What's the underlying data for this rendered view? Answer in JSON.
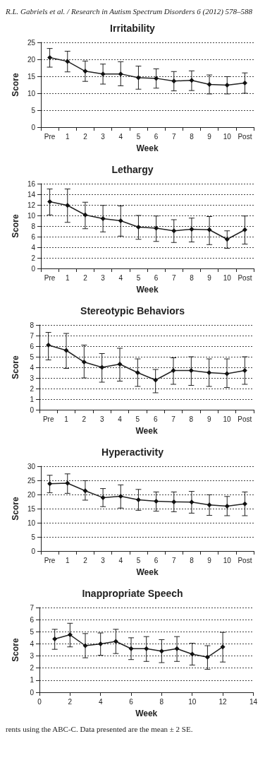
{
  "chart_data": [
    {
      "type": "line",
      "title": "Irritability",
      "xlabel": "Week",
      "ylabel": "Score",
      "annotations": [
        "R.L. Gabriels et al. / Research in Autism Spectrum Disorders 6 (2012) 578–588"
      ],
      "categories": [
        "Pre",
        "1",
        "2",
        "3",
        "4",
        "5",
        "6",
        "7",
        "8",
        "9",
        "10",
        "Post"
      ],
      "ylim": [
        0,
        25
      ],
      "yticks": [
        0,
        5,
        10,
        15,
        20,
        25
      ],
      "grid": "y",
      "marker": "diamond",
      "line_style": "solid",
      "series": [
        {
          "color": "#222222",
          "values": [
            20.5,
            19.4,
            16.5,
            15.7,
            15.7,
            14.6,
            14.4,
            13.6,
            13.8,
            12.6,
            12.4,
            13.0
          ],
          "errors": [
            [
              17.7,
              23.2
            ],
            [
              16.3,
              22.4
            ],
            [
              13.5,
              19.5
            ],
            [
              12.7,
              18.6
            ],
            [
              12.2,
              19.3
            ],
            [
              11.2,
              18.0
            ],
            [
              11.5,
              17.2
            ],
            [
              10.7,
              16.4
            ],
            [
              10.8,
              16.6
            ],
            [
              9.8,
              15.4
            ],
            [
              9.8,
              14.9
            ],
            [
              10.0,
              16.0
            ]
          ]
        }
      ]
    },
    {
      "type": "line",
      "title": "Lethargy",
      "xlabel": "Week",
      "ylabel": "Score",
      "categories": [
        "Pre",
        "1",
        "2",
        "3",
        "4",
        "5",
        "6",
        "7",
        "8",
        "9",
        "10",
        "Post"
      ],
      "ylim": [
        0,
        16
      ],
      "yticks": [
        0,
        2,
        4,
        6,
        8,
        10,
        12,
        14,
        16
      ],
      "grid": "y",
      "marker": "diamond",
      "line_style": "solid",
      "series": [
        {
          "color": "#222222",
          "values": [
            12.6,
            11.9,
            10.1,
            9.4,
            9.0,
            7.8,
            7.6,
            7.1,
            7.4,
            7.3,
            5.5,
            7.3
          ],
          "errors": [
            [
              10.1,
              15.0
            ],
            [
              8.7,
              15.0
            ],
            [
              7.5,
              12.5
            ],
            [
              6.9,
              11.9
            ],
            [
              6.1,
              11.8
            ],
            [
              5.5,
              10.0
            ],
            [
              5.1,
              9.9
            ],
            [
              4.9,
              9.2
            ],
            [
              5.0,
              9.5
            ],
            [
              4.5,
              9.8
            ],
            [
              3.8,
              7.1
            ],
            [
              4.6,
              9.9
            ]
          ]
        }
      ]
    },
    {
      "type": "line",
      "title": "Stereotypic Behaviors",
      "xlabel": "Week",
      "ylabel": "Score",
      "categories": [
        "Pre",
        "1",
        "2",
        "3",
        "4",
        "5",
        "6",
        "7",
        "8",
        "9",
        "10",
        "Post"
      ],
      "ylim": [
        0,
        8
      ],
      "yticks": [
        0,
        1,
        2,
        3,
        4,
        5,
        6,
        7,
        8
      ],
      "grid": "y",
      "marker": "diamond",
      "line_style": "solid",
      "series": [
        {
          "color": "#222222",
          "values": [
            6.1,
            5.6,
            4.5,
            4.0,
            4.3,
            3.5,
            2.8,
            3.7,
            3.7,
            3.5,
            3.4,
            3.7
          ],
          "errors": [
            [
              4.7,
              7.3
            ],
            [
              3.9,
              7.2
            ],
            [
              3.0,
              6.1
            ],
            [
              2.6,
              5.3
            ],
            [
              2.7,
              5.8
            ],
            [
              2.2,
              4.8
            ],
            [
              1.6,
              3.8
            ],
            [
              2.4,
              4.9
            ],
            [
              2.3,
              5.0
            ],
            [
              2.2,
              4.8
            ],
            [
              2.1,
              4.8
            ],
            [
              2.4,
              5.0
            ]
          ]
        }
      ]
    },
    {
      "type": "line",
      "title": "Hyperactivity",
      "xlabel": "Week",
      "ylabel": "Score",
      "categories": [
        "Pre",
        "1",
        "2",
        "3",
        "4",
        "5",
        "6",
        "7",
        "8",
        "9",
        "10",
        "Post"
      ],
      "ylim": [
        0,
        30
      ],
      "yticks": [
        0,
        5,
        10,
        15,
        20,
        25,
        30
      ],
      "grid": "y",
      "marker": "diamond",
      "line_style": "solid",
      "series": [
        {
          "color": "#222222",
          "values": [
            23.8,
            24.0,
            21.3,
            18.9,
            19.4,
            18.1,
            17.6,
            17.4,
            17.3,
            16.3,
            15.9,
            16.7
          ],
          "errors": [
            [
              20.6,
              26.8
            ],
            [
              20.4,
              27.3
            ],
            [
              18.0,
              24.9
            ],
            [
              15.7,
              22.1
            ],
            [
              15.2,
              23.4
            ],
            [
              14.4,
              21.8
            ],
            [
              14.1,
              20.9
            ],
            [
              13.9,
              20.9
            ],
            [
              13.4,
              21.1
            ],
            [
              12.6,
              19.9
            ],
            [
              12.5,
              19.3
            ],
            [
              12.5,
              20.9
            ]
          ]
        }
      ]
    },
    {
      "type": "line",
      "title": "Inappropriate Speech",
      "xlabel": "Week",
      "ylabel": "Score",
      "annotations": [
        "rents using the ABC-C. Data presented are the mean ± 2 SE."
      ],
      "x": [
        1,
        2,
        3,
        4,
        5,
        6,
        7,
        8,
        9,
        10,
        11,
        12
      ],
      "xlim": [
        0,
        14
      ],
      "xticks": [
        0,
        2,
        4,
        6,
        8,
        10,
        12,
        14
      ],
      "ylim": [
        0,
        7
      ],
      "yticks": [
        0,
        1,
        2,
        3,
        4,
        5,
        6,
        7
      ],
      "grid": "y",
      "marker": "diamond",
      "line_style": "solid",
      "series": [
        {
          "color": "#222222",
          "values": [
            4.4,
            4.75,
            3.85,
            4.0,
            4.2,
            3.6,
            3.6,
            3.4,
            3.6,
            3.15,
            2.9,
            3.75
          ],
          "errors": [
            [
              3.55,
              5.2
            ],
            [
              3.75,
              5.7
            ],
            [
              2.85,
              4.85
            ],
            [
              3.05,
              4.9
            ],
            [
              3.2,
              5.2
            ],
            [
              2.7,
              4.5
            ],
            [
              2.55,
              4.6
            ],
            [
              2.45,
              4.35
            ],
            [
              2.55,
              4.6
            ],
            [
              2.25,
              4.05
            ],
            [
              1.9,
              3.85
            ],
            [
              2.5,
              4.95
            ]
          ]
        }
      ]
    }
  ]
}
